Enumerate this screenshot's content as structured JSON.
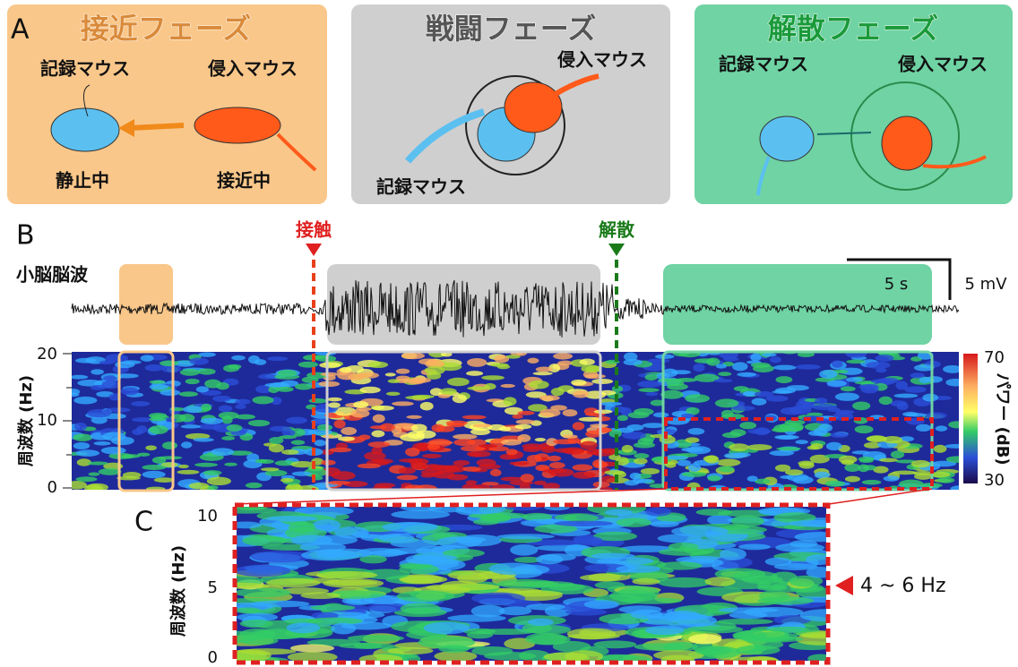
{
  "panel_a": {
    "label": "A",
    "phases": [
      {
        "title": "接近フェーズ",
        "labels": [
          "記録マウス",
          "侵入マウス",
          "静止中",
          "接近中"
        ]
      },
      {
        "title": "戦闘フェーズ",
        "labels": [
          "侵入マウス",
          "記録マウス"
        ]
      },
      {
        "title": "解散フェーズ",
        "labels": [
          "記録マウス",
          "侵入マウス"
        ]
      }
    ]
  },
  "panel_b": {
    "label": "B",
    "markers": [
      "接触",
      "解散"
    ],
    "trace_label": "小脳脳波",
    "scale_time": "5 s",
    "scale_voltage": "5 mV",
    "y_axis_label": "周波数 (Hz)",
    "y_ticks": [
      "20",
      "10",
      "0"
    ],
    "colorbar_label": "パワー (dB)",
    "colorbar_ticks": [
      "70",
      "30"
    ]
  },
  "panel_c": {
    "label": "C",
    "y_axis_label": "周波数 (Hz)",
    "y_ticks": [
      "10",
      "5",
      "0"
    ],
    "band_label": "4 ~ 6 Hz"
  }
}
